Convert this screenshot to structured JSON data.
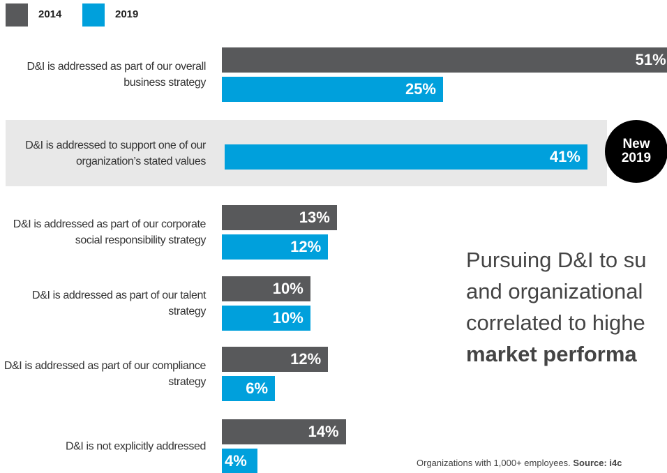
{
  "chart_data": {
    "type": "bar",
    "orientation": "horizontal",
    "categories": [
      "D&I is addressed as part of our overall business strategy",
      "D&I is addressed to support one of our organization’s stated values",
      "D&I is addressed as part of our corporate social responsibility strategy",
      "D&I is addressed as part of our talent strategy",
      "D&I is addressed as part of our compliance strategy",
      "D&I is not explicitly addressed"
    ],
    "series": [
      {
        "name": "2014",
        "color": "#58595b",
        "values": [
          51,
          null,
          13,
          10,
          12,
          14
        ],
        "value_labels": [
          "51%",
          null,
          "13%",
          "10%",
          "12%",
          "14%"
        ]
      },
      {
        "name": "2019",
        "color": "#00a0dc",
        "values": [
          25,
          41,
          12,
          10,
          6,
          4
        ],
        "value_labels": [
          "25%",
          "41%",
          "12%",
          "10%",
          "6%",
          "4%"
        ]
      }
    ],
    "highlight_category": 1,
    "badge": "New 2019",
    "callout": [
      "Pursuing D&I to su",
      "and organizational",
      "correlated to highe",
      "market performa"
    ],
    "footnote": "Organizations with 1,000+ employees.",
    "source": "Source: i4c"
  }
}
